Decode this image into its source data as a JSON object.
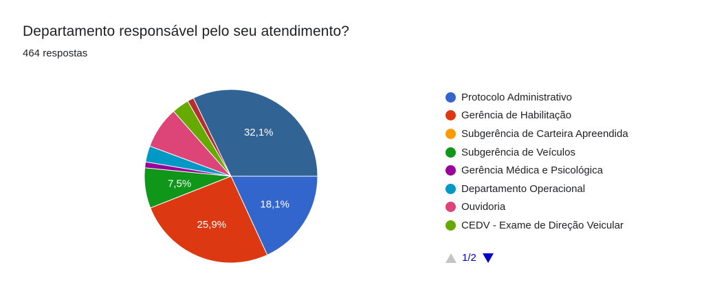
{
  "header": {
    "title": "Departamento responsável pelo seu atendimento?",
    "responses": "464 respostas"
  },
  "pager": {
    "page": "1/2",
    "prev_icon": "triangle-up-icon",
    "next_icon": "triangle-down-icon"
  },
  "chart_data": {
    "type": "pie",
    "title": "Departamento responsável pelo seu atendimento?",
    "legend_position": "right",
    "slices": [
      {
        "name": "Protocolo Administrativo",
        "value": 18.1,
        "label": "18,1%",
        "color": "#3366cc"
      },
      {
        "name": "Gerência de Habilitação",
        "value": 25.9,
        "label": "25,9%",
        "color": "#dc3912"
      },
      {
        "name": "Subgerência de Carteira Apreendida",
        "value": 0,
        "label": "",
        "color": "#ff9900"
      },
      {
        "name": "Subgerência de Veículos",
        "value": 7.5,
        "label": "7,5%",
        "color": "#109618"
      },
      {
        "name": "Gerência Médica e Psicológica",
        "value": 1.1,
        "label": "",
        "color": "#990099"
      },
      {
        "name": "Departamento Operacional",
        "value": 3.0,
        "label": "",
        "color": "#0099c6"
      },
      {
        "name": "Ouvidoria",
        "value": 7.8,
        "label": "",
        "color": "#dd4477"
      },
      {
        "name": "CEDV - Exame de Direção Veicular",
        "value": 3.2,
        "label": "",
        "color": "#66aa00"
      },
      {
        "name": "",
        "value": 1.2,
        "label": "",
        "color": "#b82e2e"
      },
      {
        "name": "",
        "value": 32.1,
        "label": "32,1%",
        "color": "#316395"
      }
    ]
  }
}
